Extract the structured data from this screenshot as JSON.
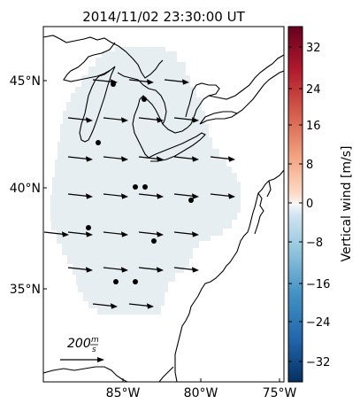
{
  "title": "2014/11/02 23:30:00 UT",
  "colorbar": {
    "label": "Vertical wind [m/s]",
    "ticks": [
      "32",
      "24",
      "16",
      "8",
      "0",
      "−8",
      "−16",
      "−24",
      "−32"
    ],
    "range": [
      -36,
      36
    ],
    "colormap": "RdBu_r"
  },
  "map": {
    "lat_labels": [
      "45°N",
      "40°N",
      "35°N"
    ],
    "lon_labels": [
      "85°W",
      "80°W",
      "75°W"
    ],
    "field_color": "#e6eef2",
    "field_value_ms": -0.5,
    "scale_label": "200 m/s",
    "scale_label_num": "200",
    "scale_label_unit_num": "m",
    "scale_label_unit_den": "s",
    "vector_direction": "east (slightly south of east)",
    "sites": 10
  }
}
